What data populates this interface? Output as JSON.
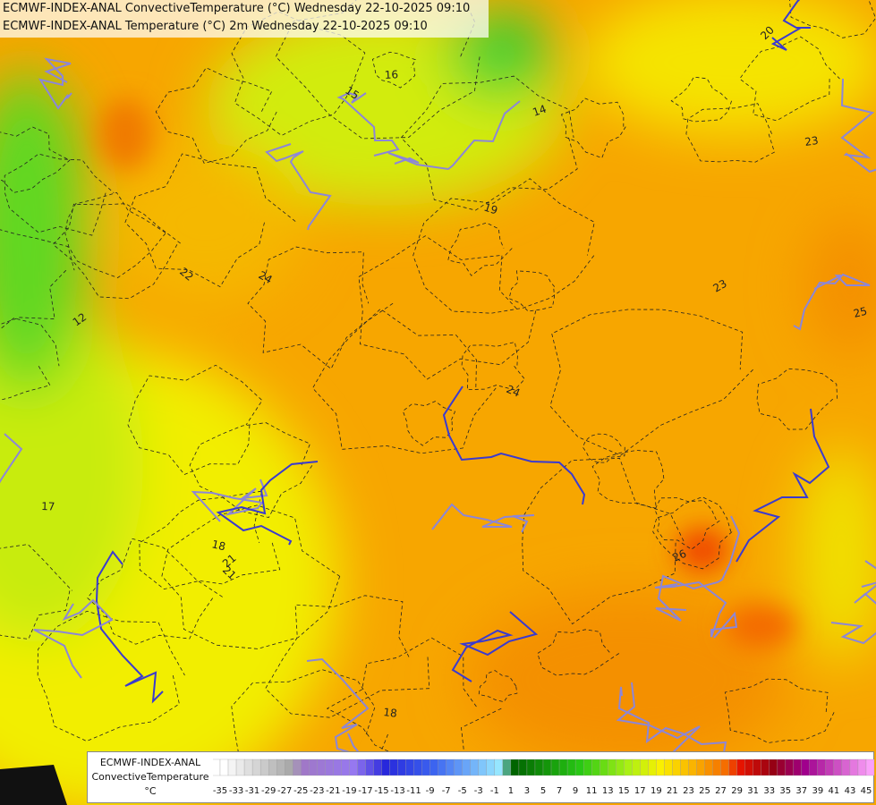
{
  "header": {
    "line1": "ECMWF-INDEX-ANAL ConvectiveTemperature (°C) Wednesday 22-10-2025 09:10",
    "line2": "ECMWF-INDEX-ANAL Temperature (°C) 2m Wednesday 22-10-2025 09:10"
  },
  "map": {
    "contour_labels": [
      "20",
      "23",
      "24",
      "26",
      "18",
      "21",
      "16",
      "15",
      "14",
      "19",
      "12",
      "17",
      "22",
      "25",
      "24",
      "23",
      "18",
      "21"
    ]
  },
  "legend": {
    "title": [
      "ECMWF-INDEX-ANAL",
      "ConvectiveTemperature",
      "°C"
    ],
    "ticks": [
      -35,
      -33,
      -31,
      -29,
      -27,
      -25,
      -23,
      -21,
      -19,
      -17,
      -15,
      -13,
      -11,
      -9,
      -7,
      -5,
      -3,
      -1,
      1,
      3,
      5,
      7,
      9,
      11,
      13,
      15,
      17,
      19,
      21,
      23,
      25,
      27,
      29,
      31,
      33,
      35,
      37,
      39,
      41,
      43,
      45
    ]
  }
}
